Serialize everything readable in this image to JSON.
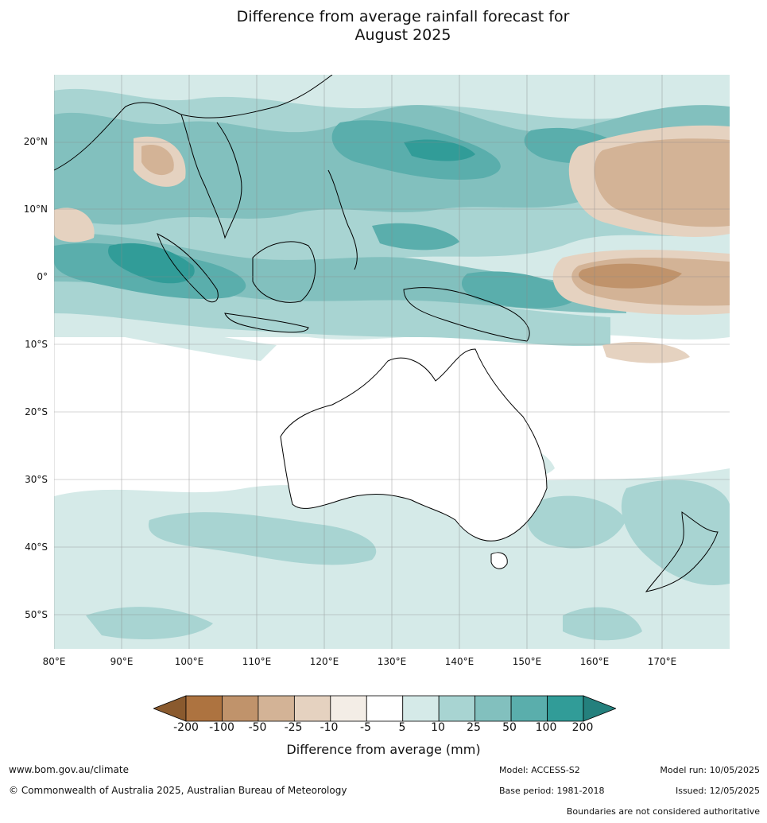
{
  "title_line1": "Difference from average rainfall forecast for",
  "title_line2": "August 2025",
  "lat_labels": [
    "20°N",
    "10°N",
    "0°",
    "10°S",
    "20°S",
    "30°S",
    "40°S",
    "50°S"
  ],
  "lon_labels": [
    "80°E",
    "90°E",
    "100°E",
    "110°E",
    "120°E",
    "130°E",
    "140°E",
    "150°E",
    "160°E",
    "170°E"
  ],
  "colorbar": {
    "label": "Difference from average (mm)",
    "ticks": [
      "-200",
      "-100",
      "-50",
      "-25",
      "-10",
      "-5",
      "5",
      "10",
      "25",
      "50",
      "100",
      "200"
    ],
    "colors": [
      "#8a5a2e",
      "#ad7340",
      "#c0936b",
      "#d3b396",
      "#e5d2c0",
      "#f3ede6",
      "#ffffff",
      "#d5eae8",
      "#a8d4d2",
      "#82c0be",
      "#5aaeac",
      "#319c98",
      "#24807d"
    ]
  },
  "footer": {
    "url": "www.bom.gov.au/climate",
    "copyright": "© Commonwealth of Australia 2025, Australian Bureau of Meteorology",
    "model": "Model: ACCESS-S2",
    "base_period": "Base period: 1981-2018",
    "model_run": "Model run: 10/05/2025",
    "issued": "Issued: 12/05/2025",
    "disclaimer": "Boundaries are not considered authoritative"
  }
}
